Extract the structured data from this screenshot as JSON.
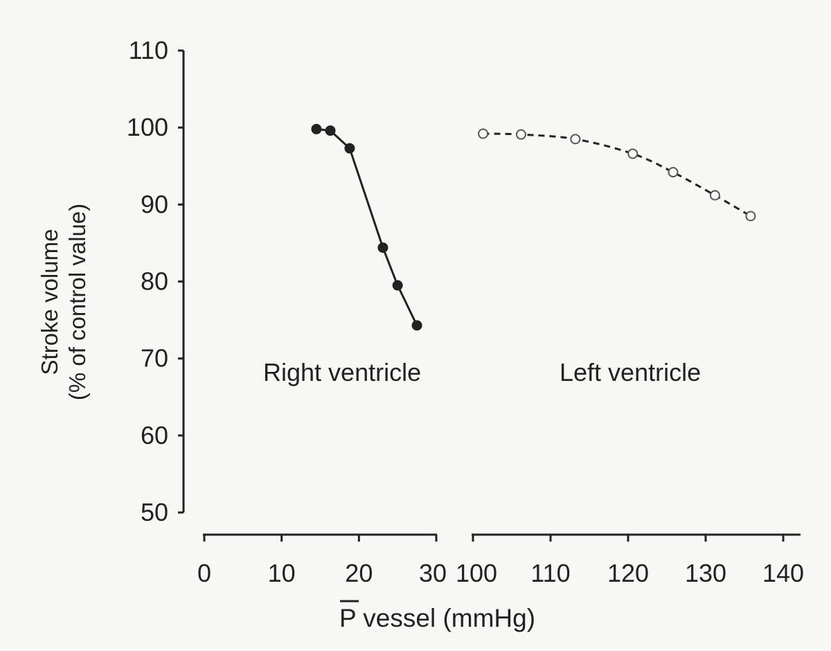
{
  "chart_data": {
    "type": "line",
    "y_axis": {
      "label_line1": "Stroke volume",
      "label_line2": "(% of control value)",
      "ylim": [
        50,
        110
      ],
      "ticks": [
        50,
        60,
        70,
        80,
        90,
        100,
        110
      ]
    },
    "x_axis_label": "P vessel (mmHg)",
    "panels": [
      {
        "label": "Right ventricle",
        "xlim": [
          0,
          30
        ],
        "ticks": [
          0,
          10,
          20,
          30
        ],
        "series": {
          "marker": "filled-circle",
          "line": "solid",
          "x": [
            14.5,
            16.3,
            18.8,
            23.1,
            25.0,
            27.5
          ],
          "y": [
            99.8,
            99.6,
            97.3,
            84.4,
            79.5,
            74.3
          ]
        }
      },
      {
        "label": "Left ventricle",
        "xlim": [
          100,
          140
        ],
        "ticks": [
          100,
          110,
          120,
          130,
          140
        ],
        "series": {
          "marker": "open-circle",
          "line": "dashed",
          "x": [
            101.3,
            106.2,
            113.2,
            120.6,
            125.8,
            131.2,
            135.8
          ],
          "y": [
            99.2,
            99.1,
            98.5,
            96.6,
            94.2,
            91.2,
            88.5
          ]
        }
      }
    ]
  },
  "colors": {
    "ink": "#222222",
    "background": "#f7f7f6"
  }
}
